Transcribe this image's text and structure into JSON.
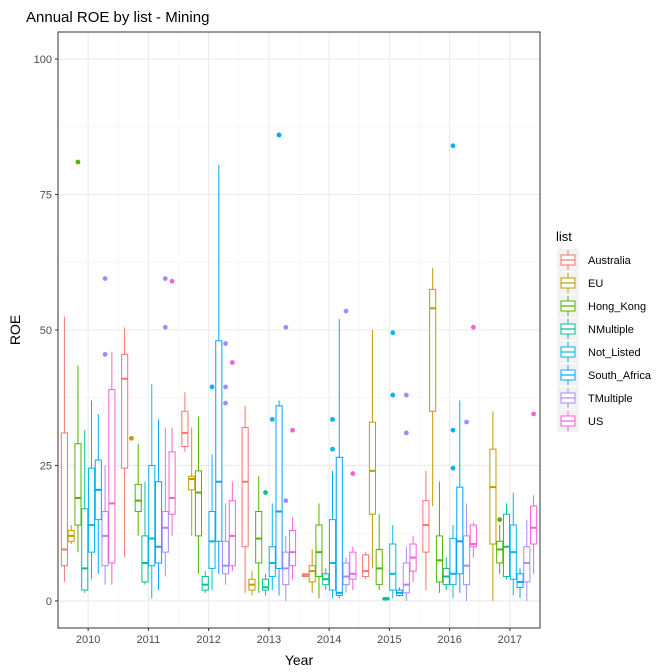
{
  "chart_data": {
    "type": "boxplot",
    "title": "Annual ROE by list - Mining",
    "xlabel": "Year",
    "ylabel": "ROE",
    "ylim": [
      -5,
      105
    ],
    "yticks": [
      0,
      25,
      50,
      75,
      100
    ],
    "grid": true,
    "legend_title": "list",
    "legend_position": "right",
    "categories": [
      "2010",
      "2011",
      "2012",
      "2013",
      "2014",
      "2015",
      "2016",
      "2017"
    ],
    "series": [
      {
        "name": "Australia",
        "color": "#F8766D",
        "boxes": [
          {
            "min": 3.5,
            "q1": 6.5,
            "median": 9.5,
            "q3": 31,
            "max": 52.5,
            "outliers": []
          },
          {
            "min": 8,
            "q1": 24.5,
            "median": 41,
            "q3": 45.5,
            "max": 50.5,
            "outliers": []
          },
          {
            "min": 27.5,
            "q1": 28.5,
            "median": 31,
            "q3": 35,
            "max": 38.5,
            "outliers": []
          },
          {
            "min": 1.5,
            "q1": 10,
            "median": 22,
            "q3": 32,
            "max": 36,
            "outliers": []
          },
          {
            "min": 4.5,
            "q1": 4.5,
            "median": 4.8,
            "q3": 5,
            "max": 5,
            "outliers": []
          },
          {
            "min": 4,
            "q1": 4.5,
            "median": 5.5,
            "q3": 8.5,
            "max": 9,
            "outliers": []
          },
          {
            "min": 2,
            "q1": 9,
            "median": 14,
            "q3": 18.5,
            "max": 24,
            "outliers": []
          },
          {
            "min": null,
            "q1": null,
            "median": null,
            "q3": null,
            "max": null,
            "outliers": []
          }
        ]
      },
      {
        "name": "EU",
        "color": "#C49A00",
        "boxes": [
          {
            "min": 10.5,
            "q1": 11,
            "median": 12,
            "q3": 13,
            "max": 14,
            "outliers": []
          },
          {
            "min": null,
            "q1": null,
            "median": null,
            "q3": null,
            "max": null,
            "outliers": [
              30
            ]
          },
          {
            "min": 12,
            "q1": 20.5,
            "median": 22.5,
            "q3": 23,
            "max": 32,
            "outliers": []
          },
          {
            "min": 1,
            "q1": 2,
            "median": 3,
            "q3": 4,
            "max": 5.5,
            "outliers": []
          },
          {
            "min": 1.5,
            "q1": 3.5,
            "median": 5.5,
            "q3": 6.5,
            "max": 9.5,
            "outliers": []
          },
          {
            "min": 6,
            "q1": 16,
            "median": 24,
            "q3": 33,
            "max": 50,
            "outliers": []
          },
          {
            "min": 17.5,
            "q1": 35,
            "median": 54,
            "q3": 57.5,
            "max": 61.5,
            "outliers": []
          },
          {
            "min": 0,
            "q1": 10.5,
            "median": 21,
            "q3": 28,
            "max": 35,
            "outliers": []
          }
        ]
      },
      {
        "name": "Hong_Kong",
        "color": "#53B400",
        "boxes": [
          {
            "min": 9,
            "q1": 14,
            "median": 19,
            "q3": 29,
            "max": 43.5,
            "outliers": [
              81
            ]
          },
          {
            "min": 12,
            "q1": 16.5,
            "median": 18.5,
            "q3": 21.5,
            "max": 29,
            "outliers": []
          },
          {
            "min": 5,
            "q1": 12,
            "median": 20,
            "q3": 24,
            "max": 34,
            "outliers": []
          },
          {
            "min": 1.5,
            "q1": 7,
            "median": 11.5,
            "q3": 16.5,
            "max": 23,
            "outliers": []
          },
          {
            "min": 0.5,
            "q1": 4.5,
            "median": 9,
            "q3": 14,
            "max": 18,
            "outliers": []
          },
          {
            "min": 2,
            "q1": 3,
            "median": 6,
            "q3": 9.5,
            "max": 16,
            "outliers": []
          },
          {
            "min": 1.5,
            "q1": 3.5,
            "median": 7.5,
            "q3": 12,
            "max": 22,
            "outliers": []
          },
          {
            "min": 5,
            "q1": 7,
            "median": 9.5,
            "q3": 11,
            "max": 14,
            "outliers": [
              15
            ]
          }
        ]
      },
      {
        "name": "NMultiple",
        "color": "#00C094",
        "boxes": [
          {
            "min": 1.5,
            "q1": 2,
            "median": 6,
            "q3": 17,
            "max": 31.5,
            "outliers": []
          },
          {
            "min": 3,
            "q1": 3.5,
            "median": 7,
            "q3": 12,
            "max": 22,
            "outliers": []
          },
          {
            "min": 1.5,
            "q1": 2,
            "median": 3,
            "q3": 4.5,
            "max": 5.5,
            "outliers": []
          },
          {
            "min": 1,
            "q1": 2,
            "median": 2.5,
            "q3": 4,
            "max": 5,
            "outliers": [
              20
            ]
          },
          {
            "min": 2,
            "q1": 3,
            "median": 4,
            "q3": 5,
            "max": 6,
            "outliers": []
          },
          {
            "min": 0,
            "q1": 0.2,
            "median": 0.4,
            "q3": 0.6,
            "max": 0.8,
            "outliers": []
          },
          {
            "min": 2,
            "q1": 3,
            "median": 4.5,
            "q3": 6,
            "max": 8,
            "outliers": []
          },
          {
            "min": 4,
            "q1": 4.5,
            "median": 10,
            "q3": 16,
            "max": 18,
            "outliers": []
          }
        ]
      },
      {
        "name": "Not_Listed",
        "color": "#00B6EB",
        "boxes": [
          {
            "min": 4,
            "q1": 9,
            "median": 14,
            "q3": 24.5,
            "max": 37,
            "outliers": []
          },
          {
            "min": 0.5,
            "q1": 6.5,
            "median": 11.5,
            "q3": 25,
            "max": 40,
            "outliers": []
          },
          {
            "min": 2,
            "q1": 6,
            "median": 11,
            "q3": 16.5,
            "max": 27,
            "outliers": [
              39.5
            ]
          },
          {
            "min": 2,
            "q1": 4.5,
            "median": 7,
            "q3": 10,
            "max": 18,
            "outliers": [
              33.5
            ]
          },
          {
            "min": 0.5,
            "q1": 2,
            "median": 7,
            "q3": 15,
            "max": 24,
            "outliers": [
              28,
              33.5
            ]
          },
          {
            "min": 0.5,
            "q1": 2,
            "median": 5,
            "q3": 10.5,
            "max": 14,
            "outliers": [
              38,
              49.5
            ]
          },
          {
            "min": 0.5,
            "q1": 3,
            "median": 5,
            "q3": 11.5,
            "max": 14,
            "outliers": [
              24.5,
              31.5,
              84
            ]
          },
          {
            "min": 1,
            "q1": 4,
            "median": 9,
            "q3": 14,
            "max": 20,
            "outliers": []
          }
        ]
      },
      {
        "name": "South_Africa",
        "color": "#06A4FF",
        "boxes": [
          {
            "min": 5,
            "q1": 15,
            "median": 20.5,
            "q3": 26,
            "max": 34.5,
            "outliers": []
          },
          {
            "min": 2,
            "q1": 7,
            "median": 10,
            "q3": 22,
            "max": 33.5,
            "outliers": []
          },
          {
            "min": 5,
            "q1": 11,
            "median": 22,
            "q3": 48,
            "max": 80.5,
            "outliers": []
          },
          {
            "min": 1,
            "q1": 6,
            "median": 16.5,
            "q3": 36,
            "max": 37,
            "outliers": [
              86
            ]
          },
          {
            "min": 0.5,
            "q1": 1,
            "median": 1.5,
            "q3": 26.5,
            "max": 52,
            "outliers": []
          },
          {
            "min": 0.8,
            "q1": 1,
            "median": 1.5,
            "q3": 2,
            "max": 2.5,
            "outliers": []
          },
          {
            "min": 1.5,
            "q1": 5,
            "median": 11,
            "q3": 21,
            "max": 37,
            "outliers": []
          },
          {
            "min": 0.5,
            "q1": 2.5,
            "median": 3.5,
            "q3": 5,
            "max": 6,
            "outliers": []
          }
        ]
      },
      {
        "name": "TMultiple",
        "color": "#A58AFF",
        "boxes": [
          {
            "min": 3,
            "q1": 6.5,
            "median": 12,
            "q3": 16.5,
            "max": 25,
            "outliers": [
              45.5,
              59.5
            ]
          },
          {
            "min": 4.5,
            "q1": 9,
            "median": 13.5,
            "q3": 16.5,
            "max": 32,
            "outliers": [
              50.5,
              59.5
            ]
          },
          {
            "min": 3,
            "q1": 5,
            "median": 6.5,
            "q3": 11,
            "max": 18,
            "outliers": [
              36.5,
              39.5,
              47.5
            ]
          },
          {
            "min": 0,
            "q1": 3,
            "median": 6,
            "q3": 9,
            "max": 12,
            "outliers": [
              18.5,
              50.5
            ]
          },
          {
            "min": 1.5,
            "q1": 3,
            "median": 4.5,
            "q3": 7,
            "max": 8,
            "outliers": [
              53.5
            ]
          },
          {
            "min": 0,
            "q1": 1.5,
            "median": 3,
            "q3": 7,
            "max": 10,
            "outliers": [
              31,
              38
            ]
          },
          {
            "min": 0,
            "q1": 3,
            "median": 6.5,
            "q3": 12,
            "max": 18,
            "outliers": [
              33
            ]
          },
          {
            "min": 0,
            "q1": 3.5,
            "median": 7,
            "q3": 10,
            "max": 15,
            "outliers": []
          }
        ]
      },
      {
        "name": "US",
        "color": "#FB61D7",
        "boxes": [
          {
            "min": 3,
            "q1": 7,
            "median": 18,
            "q3": 39,
            "max": 46,
            "outliers": []
          },
          {
            "min": 12,
            "q1": 16,
            "median": 19,
            "q3": 27.5,
            "max": 32,
            "outliers": [
              59
            ]
          },
          {
            "min": 5.5,
            "q1": 6.5,
            "median": 12,
            "q3": 18.5,
            "max": 22,
            "outliers": [
              44
            ]
          },
          {
            "min": 4,
            "q1": 6.5,
            "median": 9,
            "q3": 13,
            "max": 15.5,
            "outliers": [
              31.5
            ]
          },
          {
            "min": 2,
            "q1": 4,
            "median": 5,
            "q3": 9,
            "max": 10,
            "outliers": [
              23.5
            ]
          },
          {
            "min": 3.5,
            "q1": 5.5,
            "median": 8,
            "q3": 10.5,
            "max": 12,
            "outliers": []
          },
          {
            "min": 8,
            "q1": 10,
            "median": 10.5,
            "q3": 14,
            "max": 14.5,
            "outliers": [
              50.5
            ]
          },
          {
            "min": 5,
            "q1": 10.5,
            "median": 13.5,
            "q3": 17.5,
            "max": 19.5,
            "outliers": [
              34.5
            ]
          }
        ]
      }
    ]
  }
}
